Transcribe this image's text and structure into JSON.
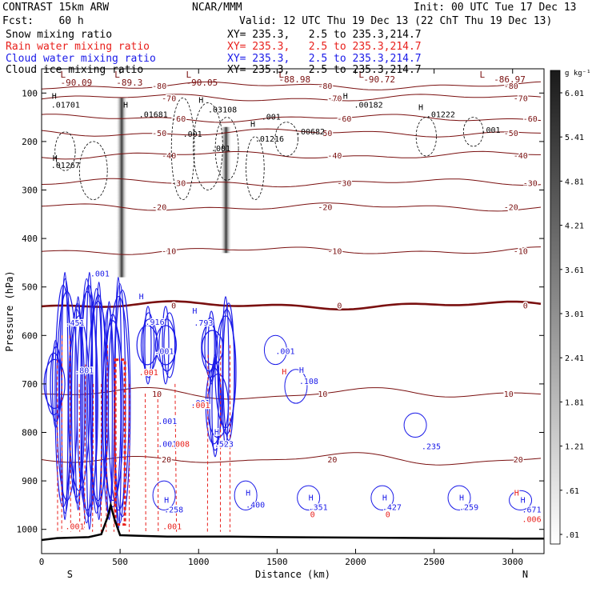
{
  "header": {
    "title_left": "CONTRAST 15km ARW",
    "title_center": "NCAR/MMM",
    "init": "Init: 00 UTC Tue 17 Dec 13",
    "fcst": "Fcst:    60 h",
    "valid": "Valid: 12 UTC Thu 19 Dec 13 (22 ChT Thu 19 Dec 13)",
    "fields": [
      {
        "label": "Snow mixing ratio",
        "color": "#000000",
        "xy": "XY= 235.3,   2.5 to 235.3,214.7"
      },
      {
        "label": "Rain water mixing ratio",
        "color": "#e8201c",
        "xy": "XY= 235.3,   2.5 to 235.3,214.7"
      },
      {
        "label": "Cloud water mixing ratio",
        "color": "#1a1ae8",
        "xy": "XY= 235.3,   2.5 to 235.3,214.7"
      },
      {
        "label": "Cloud ice mixing ratio",
        "color": "#000000",
        "xy": "XY= 235.3,   2.5 to 235.3,214.7"
      }
    ]
  },
  "chart_data": {
    "type": "cross-section",
    "xlabel": "Distance (km)",
    "ylabel": "Pressure (hPa)",
    "xlim": [
      0,
      3200
    ],
    "ylim": [
      1050,
      50
    ],
    "x_ticks": [
      0,
      500,
      1000,
      1500,
      2000,
      2500,
      3000
    ],
    "y_ticks": [
      100,
      200,
      300,
      400,
      500,
      600,
      700,
      800,
      900,
      1000
    ],
    "x_ends": {
      "left": "S",
      "right": "N"
    },
    "colorbar": {
      "unit": "g kg⁻¹",
      "ticks": [
        ".01",
        ".61",
        "1.21",
        "1.81",
        "2.41",
        "3.01",
        "3.61",
        "4.21",
        "4.81",
        "5.41",
        "6.01"
      ]
    },
    "temperature_contours": [
      {
        "label": "-80",
        "p": 85
      },
      {
        "label": "-70",
        "p": 110
      },
      {
        "label": "-60",
        "p": 152
      },
      {
        "label": "-50",
        "p": 182
      },
      {
        "label": "-40",
        "p": 228
      },
      {
        "label": "-30",
        "p": 285
      },
      {
        "label": "-20",
        "p": 335
      },
      {
        "label": "-10",
        "p": 425
      },
      {
        "label": "0",
        "p": 538
      },
      {
        "label": "10",
        "p": 720
      },
      {
        "label": "20",
        "p": 855
      }
    ],
    "pressure_labels": [
      {
        "text": "L",
        "x": 120,
        "p": 68
      },
      {
        "text": "-90.09",
        "x": 120,
        "p": 85
      },
      {
        "text": "L",
        "x": 465,
        "p": 68
      },
      {
        "text": "-89.3",
        "x": 475,
        "p": 85
      },
      {
        "text": "L",
        "x": 920,
        "p": 68
      },
      {
        "text": "-90.05",
        "x": 920,
        "p": 85
      },
      {
        "text": "L",
        "x": 1510,
        "p": 68
      },
      {
        "text": "-88.98",
        "x": 1510,
        "p": 78
      },
      {
        "text": "L",
        "x": 2020,
        "p": 68
      },
      {
        "text": "-90.72",
        "x": 2050,
        "p": 78
      },
      {
        "text": "L",
        "x": 2790,
        "p": 68
      },
      {
        "text": "-86.97",
        "x": 2880,
        "p": 78
      }
    ],
    "cloud_ice_labels": [
      {
        "text": "H",
        "x": 65,
        "p": 112
      },
      {
        "text": ".01701",
        "x": 60,
        "p": 130
      },
      {
        "text": "H",
        "x": 520,
        "p": 130
      },
      {
        "text": ".01681",
        "x": 620,
        "p": 150
      },
      {
        "text": "H",
        "x": 1000,
        "p": 120
      },
      {
        "text": ".03108",
        "x": 1060,
        "p": 140
      },
      {
        "text": ".001",
        "x": 1400,
        "p": 155
      },
      {
        "text": "H",
        "x": 1920,
        "p": 112
      },
      {
        "text": ".00182",
        "x": 1990,
        "p": 130
      },
      {
        "text": "H",
        "x": 2400,
        "p": 135
      },
      {
        "text": ".01222",
        "x": 2450,
        "p": 150
      },
      {
        "text": ".001",
        "x": 2800,
        "p": 182
      },
      {
        "text": "H",
        "x": 1330,
        "p": 170
      },
      {
        "text": ".00682",
        "x": 1620,
        "p": 185
      },
      {
        "text": ".01216",
        "x": 1360,
        "p": 200
      },
      {
        "text": ".001",
        "x": 900,
        "p": 190
      },
      {
        "text": ".001",
        "x": 1080,
        "p": 220
      },
      {
        "text": "H",
        "x": 70,
        "p": 240
      },
      {
        "text": ".01267",
        "x": 60,
        "p": 255
      }
    ],
    "cloud_water_labels": [
      {
        "text": ".001",
        "x": 310,
        "p": 478
      },
      {
        "text": "H",
        "x": 620,
        "p": 525
      },
      {
        "text": ".916",
        "x": 660,
        "p": 578
      },
      {
        "text": "H",
        "x": 960,
        "p": 555
      },
      {
        "text": ".793",
        "x": 970,
        "p": 580
      },
      {
        "text": ".001",
        "x": 720,
        "p": 638
      },
      {
        "text": ".001",
        "x": 1490,
        "p": 638
      },
      {
        "text": "H",
        "x": 1640,
        "p": 677
      },
      {
        "text": ".108",
        "x": 1640,
        "p": 700
      },
      {
        "text": ".001",
        "x": 950,
        "p": 745
      },
      {
        "text": ".001",
        "x": 740,
        "p": 783
      },
      {
        "text": ".001",
        "x": 740,
        "p": 830
      },
      {
        "text": "H",
        "x": 1100,
        "p": 805
      },
      {
        "text": ".523",
        "x": 1100,
        "p": 830
      },
      {
        "text": ".235",
        "x": 2420,
        "p": 835
      },
      {
        "text": "H",
        "x": 780,
        "p": 945
      },
      {
        "text": ".258",
        "x": 780,
        "p": 965
      },
      {
        "text": "H",
        "x": 1300,
        "p": 930
      },
      {
        "text": ".400",
        "x": 1300,
        "p": 955
      },
      {
        "text": "H",
        "x": 1700,
        "p": 940
      },
      {
        "text": ".351",
        "x": 1700,
        "p": 960
      },
      {
        "text": "H",
        "x": 2170,
        "p": 940
      },
      {
        "text": ".427",
        "x": 2170,
        "p": 960
      },
      {
        "text": "H",
        "x": 2660,
        "p": 940
      },
      {
        "text": ".259",
        "x": 2660,
        "p": 960
      },
      {
        "text": "H",
        "x": 3050,
        "p": 945
      },
      {
        "text": ".671",
        "x": 3060,
        "p": 965
      },
      {
        "text": ".451",
        "x": 150,
        "p": 580
      },
      {
        "text": ".801",
        "x": 210,
        "p": 678
      }
    ],
    "rain_labels": [
      {
        "text": "H",
        "x": 1530,
        "p": 680
      },
      {
        "text": ".001",
        "x": 620,
        "p": 682
      },
      {
        "text": ".001",
        "x": 950,
        "p": 750
      },
      {
        "text": ".008",
        "x": 820,
        "p": 830
      },
      {
        "text": ".001",
        "x": 770,
        "p": 1000
      },
      {
        "text": ".006",
        "x": 3060,
        "p": 985
      },
      {
        "text": "0",
        "x": 1710,
        "p": 975
      },
      {
        "text": "0",
        "x": 2190,
        "p": 975
      },
      {
        "text": ".001",
        "x": 150,
        "p": 1000
      },
      {
        "text": "H",
        "x": 3010,
        "p": 930
      }
    ],
    "shading_columns": [
      {
        "x": 510,
        "p_top": 110,
        "p_bottom": 480
      },
      {
        "x": 1175,
        "p_top": 170,
        "p_bottom": 430
      }
    ],
    "terrain": [
      [
        0,
        1022
      ],
      [
        100,
        1018
      ],
      [
        200,
        1017
      ],
      [
        300,
        1016
      ],
      [
        380,
        1010
      ],
      [
        420,
        975
      ],
      [
        440,
        950
      ],
      [
        465,
        980
      ],
      [
        500,
        1012
      ],
      [
        600,
        1013
      ],
      [
        800,
        1015
      ],
      [
        1000,
        1015
      ],
      [
        1200,
        1015
      ],
      [
        1500,
        1016
      ],
      [
        2000,
        1017
      ],
      [
        2500,
        1018
      ],
      [
        3000,
        1019
      ],
      [
        3200,
        1019
      ]
    ]
  }
}
